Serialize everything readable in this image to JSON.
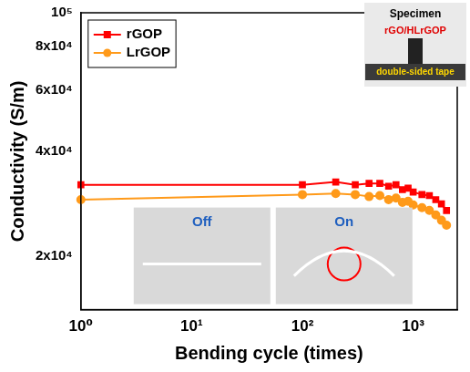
{
  "chart_data": {
    "type": "line",
    "x_label": "Bending cycle (times)",
    "y_label": "Conductivity (S/m)",
    "log": true,
    "grid": false,
    "legend": "upper left",
    "xlim": [
      1,
      2500
    ],
    "xticks": [
      {
        "value": 1,
        "label": "10⁰"
      },
      {
        "value": 10,
        "label": "10¹"
      },
      {
        "value": 100,
        "label": "10²"
      },
      {
        "value": 1000,
        "label": "10³"
      }
    ],
    "ylim": [
      14000,
      100000
    ],
    "yticks": [
      {
        "value": 20000,
        "label": "2x10⁴"
      },
      {
        "value": 40000,
        "label": "4x10⁴"
      },
      {
        "value": 60000,
        "label": "6x10⁴"
      },
      {
        "value": 80000,
        "label": "8x10⁴"
      },
      {
        "value": 100000,
        "label": "10⁵"
      }
    ],
    "x": [
      1,
      100,
      200,
      300,
      400,
      500,
      600,
      700,
      800,
      900,
      1000,
      1200,
      1400,
      1600,
      1800,
      2000
    ],
    "series": [
      {
        "name": "rGOP",
        "color": "#ff0000",
        "marker": "square",
        "values": [
          32000,
          32000,
          32600,
          32000,
          32300,
          32300,
          31700,
          32000,
          31000,
          31300,
          30500,
          30000,
          29800,
          29000,
          28200,
          27000
        ]
      },
      {
        "name": "LrGOP",
        "color": "#ff9a1a",
        "marker": "circle",
        "values": [
          29000,
          30000,
          30200,
          30000,
          29600,
          29800,
          29000,
          29300,
          28500,
          28700,
          28000,
          27500,
          27000,
          26200,
          25300,
          24500
        ]
      }
    ],
    "annotations": [
      "Specimen",
      "rGO/HLrGOP",
      "double-sided tape",
      "Off",
      "On"
    ]
  }
}
